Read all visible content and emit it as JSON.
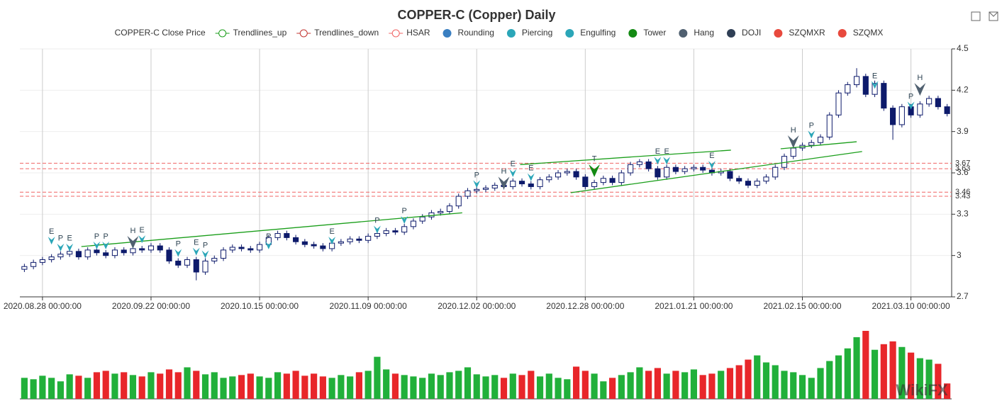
{
  "chart_data": {
    "type": "candlestick",
    "title": "COPPER-C (Copper) Daily",
    "xlim": [
      -0.5,
      102.5
    ],
    "xticks": [
      {
        "value": 2,
        "label": "2020.08.28 00:00:00"
      },
      {
        "value": 14,
        "label": "2020.09.22 00:00:00"
      },
      {
        "value": 26,
        "label": "2020.10.15 00:00:00"
      },
      {
        "value": 38,
        "label": "2020.11.09 00:00:00"
      },
      {
        "value": 50,
        "label": "2020.12.02 00:00:00"
      },
      {
        "value": 62,
        "label": "2020.12.28 00:00:00"
      },
      {
        "value": 74,
        "label": "2021.01.21 00:00:00"
      },
      {
        "value": 86,
        "label": "2021.02.15 00:00:00"
      },
      {
        "value": 98,
        "label": "2021.03.10 00:00:00"
      }
    ],
    "ylim": [
      2.7,
      4.5
    ],
    "yticks": [
      {
        "value": 2.7,
        "label": "2.7"
      },
      3,
      {
        "value": 3.3,
        "label": "3.3"
      },
      {
        "value": 3.6,
        "label": "3.6"
      },
      {
        "value": 3.9,
        "label": "3.9"
      },
      {
        "value": 4.2,
        "label": "4.2"
      },
      {
        "value": 4.5,
        "label": "4.5"
      }
    ],
    "grid": true,
    "up_color": "#ffffff",
    "down_color": "#0d1a6b",
    "edge_color": "#0d1a6b",
    "volume_up_color": "#21b03a",
    "volume_down_color": "#e8262a",
    "ohlc": [
      [
        2.9,
        2.94,
        2.88,
        2.92
      ],
      [
        2.92,
        2.97,
        2.9,
        2.95
      ],
      [
        2.95,
        2.99,
        2.93,
        2.97
      ],
      [
        2.97,
        3.01,
        2.95,
        2.99
      ],
      [
        2.99,
        3.03,
        2.97,
        3.01
      ],
      [
        3.01,
        3.05,
        2.99,
        3.03
      ],
      [
        3.03,
        3.05,
        2.97,
        2.99
      ],
      [
        2.99,
        3.06,
        2.97,
        3.04
      ],
      [
        3.04,
        3.06,
        3.0,
        3.02
      ],
      [
        3.02,
        3.04,
        2.98,
        3.0
      ],
      [
        3.0,
        3.06,
        2.98,
        3.04
      ],
      [
        3.04,
        3.06,
        3.0,
        3.02
      ],
      [
        3.02,
        3.07,
        3.0,
        3.05
      ],
      [
        3.05,
        3.07,
        3.02,
        3.04
      ],
      [
        3.04,
        3.09,
        3.02,
        3.07
      ],
      [
        3.07,
        3.09,
        3.02,
        3.04
      ],
      [
        3.04,
        3.06,
        2.94,
        2.96
      ],
      [
        2.96,
        2.98,
        2.91,
        2.93
      ],
      [
        2.93,
        2.99,
        2.91,
        2.97
      ],
      [
        2.97,
        2.99,
        2.82,
        2.88
      ],
      [
        2.88,
        2.98,
        2.86,
        2.96
      ],
      [
        2.96,
        3.0,
        2.94,
        2.98
      ],
      [
        2.98,
        3.06,
        2.96,
        3.04
      ],
      [
        3.04,
        3.08,
        3.02,
        3.06
      ],
      [
        3.06,
        3.08,
        3.03,
        3.05
      ],
      [
        3.05,
        3.07,
        3.02,
        3.04
      ],
      [
        3.04,
        3.1,
        3.02,
        3.08
      ],
      [
        3.08,
        3.15,
        3.06,
        3.13
      ],
      [
        3.13,
        3.18,
        3.11,
        3.16
      ],
      [
        3.16,
        3.18,
        3.11,
        3.13
      ],
      [
        3.13,
        3.15,
        3.08,
        3.1
      ],
      [
        3.1,
        3.12,
        3.06,
        3.08
      ],
      [
        3.08,
        3.1,
        3.05,
        3.07
      ],
      [
        3.07,
        3.09,
        3.03,
        3.05
      ],
      [
        3.05,
        3.11,
        3.03,
        3.09
      ],
      [
        3.09,
        3.12,
        3.07,
        3.1
      ],
      [
        3.1,
        3.14,
        3.08,
        3.12
      ],
      [
        3.12,
        3.14,
        3.09,
        3.11
      ],
      [
        3.11,
        3.16,
        3.09,
        3.14
      ],
      [
        3.14,
        3.18,
        3.12,
        3.16
      ],
      [
        3.16,
        3.2,
        3.14,
        3.18
      ],
      [
        3.18,
        3.2,
        3.15,
        3.17
      ],
      [
        3.17,
        3.23,
        3.15,
        3.21
      ],
      [
        3.21,
        3.27,
        3.19,
        3.25
      ],
      [
        3.25,
        3.3,
        3.23,
        3.28
      ],
      [
        3.28,
        3.33,
        3.26,
        3.31
      ],
      [
        3.31,
        3.34,
        3.29,
        3.32
      ],
      [
        3.32,
        3.38,
        3.3,
        3.36
      ],
      [
        3.36,
        3.45,
        3.34,
        3.43
      ],
      [
        3.43,
        3.49,
        3.41,
        3.47
      ],
      [
        3.47,
        3.5,
        3.45,
        3.48
      ],
      [
        3.48,
        3.51,
        3.46,
        3.49
      ],
      [
        3.49,
        3.53,
        3.47,
        3.51
      ],
      [
        3.51,
        3.53,
        3.48,
        3.5
      ],
      [
        3.5,
        3.56,
        3.48,
        3.54
      ],
      [
        3.54,
        3.56,
        3.5,
        3.52
      ],
      [
        3.52,
        3.54,
        3.48,
        3.5
      ],
      [
        3.5,
        3.57,
        3.48,
        3.55
      ],
      [
        3.55,
        3.59,
        3.53,
        3.57
      ],
      [
        3.57,
        3.62,
        3.55,
        3.6
      ],
      [
        3.6,
        3.63,
        3.58,
        3.61
      ],
      [
        3.61,
        3.63,
        3.55,
        3.57
      ],
      [
        3.57,
        3.59,
        3.48,
        3.5
      ],
      [
        3.5,
        3.55,
        3.48,
        3.53
      ],
      [
        3.53,
        3.58,
        3.51,
        3.56
      ],
      [
        3.56,
        3.58,
        3.51,
        3.53
      ],
      [
        3.53,
        3.62,
        3.51,
        3.6
      ],
      [
        3.6,
        3.68,
        3.58,
        3.66
      ],
      [
        3.66,
        3.7,
        3.64,
        3.68
      ],
      [
        3.68,
        3.7,
        3.61,
        3.63
      ],
      [
        3.63,
        3.65,
        3.55,
        3.57
      ],
      [
        3.57,
        3.66,
        3.55,
        3.64
      ],
      [
        3.64,
        3.66,
        3.59,
        3.61
      ],
      [
        3.61,
        3.65,
        3.59,
        3.63
      ],
      [
        3.63,
        3.66,
        3.61,
        3.64
      ],
      [
        3.64,
        3.66,
        3.6,
        3.62
      ],
      [
        3.62,
        3.64,
        3.58,
        3.6
      ],
      [
        3.6,
        3.63,
        3.58,
        3.61
      ],
      [
        3.61,
        3.63,
        3.54,
        3.56
      ],
      [
        3.56,
        3.58,
        3.52,
        3.54
      ],
      [
        3.54,
        3.56,
        3.49,
        3.51
      ],
      [
        3.51,
        3.56,
        3.49,
        3.54
      ],
      [
        3.54,
        3.59,
        3.52,
        3.57
      ],
      [
        3.57,
        3.66,
        3.55,
        3.64
      ],
      [
        3.64,
        3.74,
        3.62,
        3.72
      ],
      [
        3.72,
        3.8,
        3.7,
        3.78
      ],
      [
        3.78,
        3.82,
        3.76,
        3.8
      ],
      [
        3.8,
        3.84,
        3.78,
        3.82
      ],
      [
        3.82,
        3.88,
        3.8,
        3.86
      ],
      [
        3.86,
        4.04,
        3.84,
        4.02
      ],
      [
        4.02,
        4.2,
        4.0,
        4.18
      ],
      [
        4.18,
        4.26,
        4.16,
        4.24
      ],
      [
        4.24,
        4.36,
        4.22,
        4.3
      ],
      [
        4.3,
        4.32,
        4.15,
        4.17
      ],
      [
        4.17,
        4.27,
        4.15,
        4.25
      ],
      [
        4.25,
        4.27,
        4.05,
        4.07
      ],
      [
        4.07,
        4.09,
        3.84,
        3.95
      ],
      [
        3.95,
        4.1,
        3.93,
        4.08
      ],
      [
        4.08,
        4.1,
        4.0,
        4.02
      ],
      [
        4.02,
        4.12,
        4.0,
        4.1
      ],
      [
        4.1,
        4.16,
        4.08,
        4.14
      ],
      [
        4.14,
        4.16,
        4.06,
        4.08
      ],
      [
        4.08,
        4.1,
        4.01,
        4.03
      ]
    ],
    "volume": [
      30,
      28,
      33,
      30,
      25,
      35,
      33,
      30,
      38,
      40,
      36,
      38,
      34,
      32,
      38,
      36,
      42,
      38,
      45,
      40,
      35,
      38,
      30,
      32,
      34,
      36,
      32,
      30,
      38,
      36,
      40,
      33,
      36,
      32,
      30,
      34,
      32,
      38,
      40,
      60,
      42,
      36,
      34,
      32,
      30,
      36,
      34,
      38,
      40,
      45,
      35,
      32,
      34,
      30,
      36,
      34,
      40,
      32,
      36,
      30,
      28,
      46,
      40,
      36,
      25,
      30,
      34,
      38,
      45,
      40,
      44,
      36,
      40,
      38,
      42,
      34,
      36,
      40,
      44,
      48,
      56,
      62,
      52,
      48,
      40,
      38,
      34,
      30,
      44,
      54,
      62,
      72,
      88,
      97,
      70,
      78,
      82,
      74,
      66,
      58,
      56,
      50,
      22
    ],
    "series": [
      {
        "name": "COPPER-C Close Price"
      },
      {
        "name": "Trendlines_up",
        "color": "#1a9e1a",
        "icon": "line",
        "lines": [
          {
            "x": [
              6.3,
              48.4
            ],
            "values": [
              3.065,
              3.31
            ]
          },
          {
            "x": [
              54.8,
              78.1
            ],
            "values": [
              3.66,
              3.765
            ]
          },
          {
            "x": [
              60.4,
              92.6
            ],
            "values": [
              3.456,
              3.755
            ]
          },
          {
            "x": [
              83.6,
              92
            ],
            "values": [
              3.775,
              3.826
            ]
          }
        ]
      },
      {
        "name": "Trendlines_down",
        "color": "#c23531",
        "icon": "line"
      },
      {
        "name": "HSAR",
        "color": "#f06464",
        "icon": "line",
        "levels": [
          3.67,
          3.63,
          3.46,
          3.43
        ]
      },
      {
        "name": "Rounding",
        "color": "#3a7fc1",
        "icon": "circle"
      },
      {
        "name": "Piercing",
        "color": "#2ba6b8",
        "icon": "circle",
        "markers": [
          {
            "index": 4,
            "value": 3.03,
            "label": "P"
          },
          {
            "index": 8,
            "value": 3.045,
            "label": "P"
          },
          {
            "index": 9,
            "value": 3.045,
            "label": "P"
          },
          {
            "index": 17,
            "value": 2.99,
            "label": "P"
          },
          {
            "index": 20,
            "value": 2.98,
            "label": "P"
          },
          {
            "index": 27,
            "value": 3.045,
            "label": "P"
          },
          {
            "index": 39,
            "value": 3.16,
            "label": "P"
          },
          {
            "index": 42,
            "value": 3.23,
            "label": "P"
          },
          {
            "index": 50,
            "value": 3.49,
            "label": "P"
          },
          {
            "index": 87,
            "value": 3.85,
            "label": "P"
          },
          {
            "index": 98,
            "value": 4.06,
            "label": "P"
          }
        ]
      },
      {
        "name": "Engulfing",
        "color": "#2ba6b8",
        "icon": "circle",
        "markers": [
          {
            "index": 3,
            "value": 3.08,
            "label": "E"
          },
          {
            "index": 5,
            "value": 3.03,
            "label": "E"
          },
          {
            "index": 13,
            "value": 3.09,
            "label": "E"
          },
          {
            "index": 19,
            "value": 3.0,
            "label": "E"
          },
          {
            "index": 34,
            "value": 3.08,
            "label": "E"
          },
          {
            "index": 54,
            "value": 3.57,
            "label": "E"
          },
          {
            "index": 56,
            "value": 3.54,
            "label": "E"
          },
          {
            "index": 70,
            "value": 3.66,
            "label": "E"
          },
          {
            "index": 71,
            "value": 3.66,
            "label": "E"
          },
          {
            "index": 76,
            "value": 3.63,
            "label": "E"
          },
          {
            "index": 94,
            "value": 4.21,
            "label": "E"
          }
        ]
      },
      {
        "name": "Tower",
        "color": "#138a13",
        "icon": "circle",
        "markers": [
          {
            "index": 63,
            "value": 3.57,
            "label": "T"
          }
        ]
      },
      {
        "name": "Hang",
        "color": "#506070",
        "icon": "circle",
        "markers": [
          {
            "index": 12,
            "value": 3.05,
            "label": "H"
          },
          {
            "index": 53,
            "value": 3.48,
            "label": "H"
          },
          {
            "index": 85,
            "value": 3.78,
            "label": "H"
          },
          {
            "index": 99,
            "value": 4.16,
            "label": "H"
          }
        ]
      },
      {
        "name": "DOJI",
        "color": "#2f3f55",
        "icon": "circle"
      },
      {
        "name": "SZQMXR",
        "color": "#e8493d",
        "icon": "circle"
      },
      {
        "name": "SZQMX",
        "color": "#e8493d",
        "icon": "circle"
      }
    ],
    "watermark": "WikiFX"
  }
}
